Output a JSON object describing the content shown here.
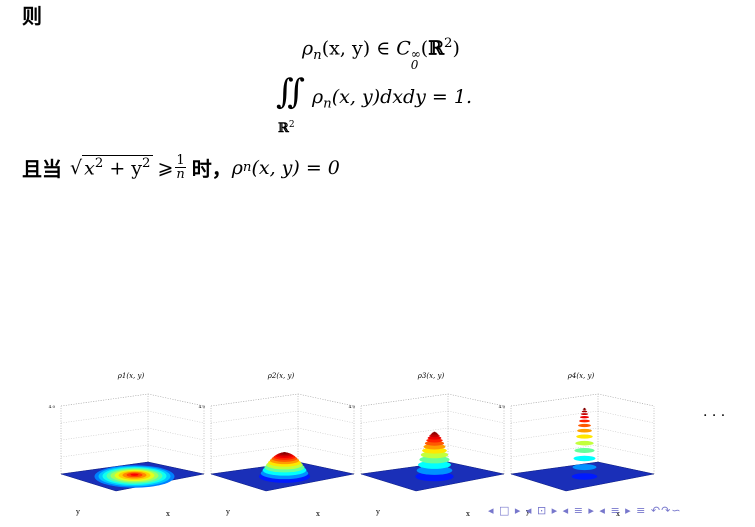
{
  "heading": "则",
  "formula1": {
    "lhs_rho": "ρ",
    "lhs_sub": "n",
    "lhs_args": "(x, y) ∈ ",
    "C": "C",
    "C_sub": "0",
    "C_sup": "∞",
    "space_open": "(",
    "R": "ℝ",
    "R_sup": "2",
    "space_close": ")"
  },
  "formula2": {
    "integral": "∬",
    "domain": "ℝ",
    "domain_sup": "2",
    "rho": "ρ",
    "rho_sub": "n",
    "args": "(x, y)dxdy = 1."
  },
  "condition": {
    "prefix": "且当",
    "sqrt_symbol": "√",
    "sqrt_body": "x",
    "sqrt_sup1": "2",
    "sqrt_plus": " + y",
    "sqrt_sup2": "2",
    "geq": "⩾",
    "frac_num": "1",
    "frac_den": "n",
    "mid": "时，",
    "rho": "ρ",
    "rho_sub": "n",
    "tail": "(x, y) = 0"
  },
  "plots": [
    {
      "title": "ρ1(x, y)",
      "zmax_label": "4.0",
      "peak": 0.18
    },
    {
      "title": "ρ2(x, y)",
      "zmax_label": "4.0",
      "peak": 0.35
    },
    {
      "title": "ρ3(x, y)",
      "zmax_label": "4.0",
      "peak": 0.65
    },
    {
      "title": "ρ4(x, y)",
      "zmax_label": "4.0",
      "peak": 1.0
    }
  ],
  "axis_labels": {
    "x": "x",
    "y": "y"
  },
  "ellipsis": "· · ·",
  "nav_symbols": "◂ □ ▸ ◂ ⊡ ▸ ◂ ≡ ▸ ◂ ≡ ▸   ≡   ↶↷∽"
}
